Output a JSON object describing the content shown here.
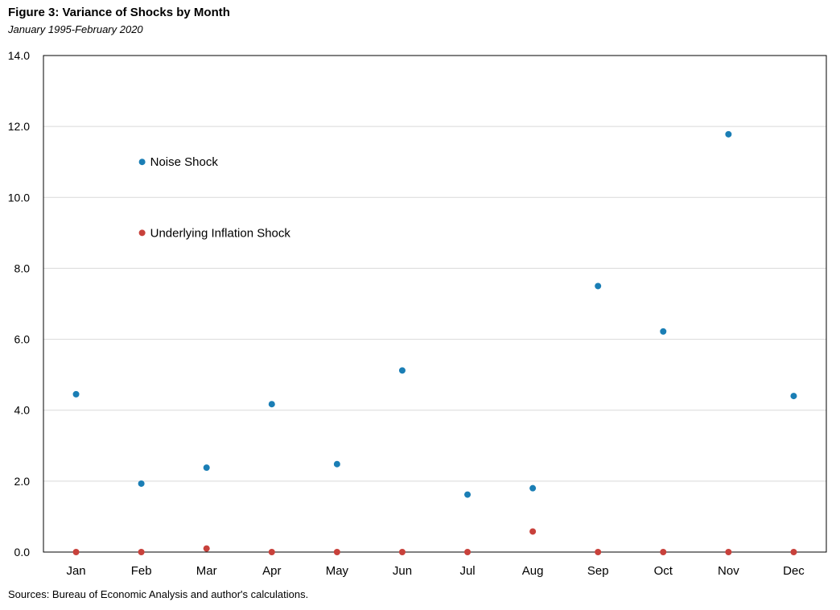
{
  "chart_data": {
    "type": "scatter",
    "title": "Figure 3: Variance of Shocks by Month",
    "subtitle": "January 1995-February 2020",
    "xlabel": "",
    "ylabel": "",
    "categories": [
      "Jan",
      "Feb",
      "Mar",
      "Apr",
      "May",
      "Jun",
      "Jul",
      "Aug",
      "Sep",
      "Oct",
      "Nov",
      "Dec"
    ],
    "y_ticks": [
      "0.0",
      "2.0",
      "4.0",
      "6.0",
      "8.0",
      "10.0",
      "12.0",
      "14.0"
    ],
    "ylim": [
      0,
      14
    ],
    "grid": true,
    "legend_position": "top-left, inside plot",
    "series": [
      {
        "name": "Noise Shock",
        "color": "#1a7eb5",
        "values": [
          4.45,
          1.93,
          2.38,
          4.17,
          2.48,
          5.12,
          1.62,
          1.8,
          7.5,
          6.22,
          11.78,
          4.4
        ]
      },
      {
        "name": "Underlying Inflation Shock",
        "color": "#c8413b",
        "values": [
          0.0,
          0.0,
          0.1,
          0.0,
          0.0,
          0.0,
          0.0,
          0.58,
          0.0,
          0.0,
          0.0,
          0.0
        ]
      }
    ],
    "legend_y_values": [
      11,
      9
    ]
  },
  "source_note": "Sources: Bureau of Economic Analysis and author's calculations."
}
